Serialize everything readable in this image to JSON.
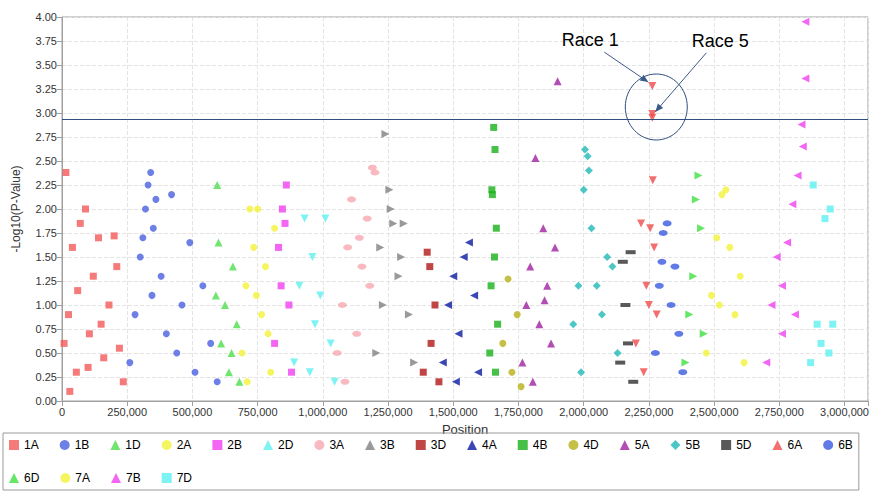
{
  "chart_data": {
    "type": "scatter",
    "x_label": "Position",
    "y_label": "-Log10(P-Value)",
    "xlim": [
      0,
      3090000
    ],
    "xticks": [
      0,
      {
        "value": 250000,
        "label": "250,000"
      },
      {
        "value": 500000,
        "label": "500,000"
      },
      {
        "value": 750000,
        "label": "750,000"
      },
      {
        "value": 1000000,
        "label": "1,000,000"
      },
      {
        "value": 1250000,
        "label": "1,250,000"
      },
      {
        "value": 1500000,
        "label": "1,500,000"
      },
      {
        "value": 1750000,
        "label": "1,750,000"
      },
      {
        "value": 2000000,
        "label": "2,000,000"
      },
      {
        "value": 2250000,
        "label": "2,250,000"
      },
      {
        "value": 2500000,
        "label": "2,500,000"
      },
      {
        "value": 2750000,
        "label": "2,750,000"
      },
      {
        "value": 3000000,
        "label": "3,000,000"
      }
    ],
    "ylim": [
      0,
      4
    ],
    "yticks": [
      {
        "value": 0,
        "label": "0.00"
      },
      0.25,
      {
        "value": 0.5,
        "label": "0.50"
      },
      0.75,
      {
        "value": 1,
        "label": "1.00"
      },
      1.25,
      {
        "value": 1.5,
        "label": "1.50"
      },
      1.75,
      {
        "value": 2,
        "label": "2.00"
      },
      2.25,
      {
        "value": 2.5,
        "label": "2.50"
      },
      2.75,
      {
        "value": 3,
        "label": "3.00"
      },
      3.25,
      {
        "value": 3.5,
        "label": "3.50"
      },
      3.75,
      {
        "value": 4,
        "label": "4.00"
      }
    ],
    "grid": true,
    "legend": "bottom",
    "threshold": 2.93,
    "annotations": [
      {
        "text": "Race 1",
        "x": 2263000,
        "y": 3.28
      },
      {
        "text": "Race 5",
        "x": 2263000,
        "y": 2.97
      }
    ],
    "series": [
      {
        "name": "1A",
        "color": "#f25a5a",
        "marker": "square",
        "x": [
          8000,
          15000,
          25000,
          40000,
          55000,
          70000,
          90000,
          105000,
          120000,
          140000,
          160000,
          180000,
          200000,
          220000,
          235000,
          30000,
          60000,
          100000,
          150000,
          210000
        ],
        "values": [
          0.6,
          2.38,
          0.9,
          1.6,
          0.3,
          1.85,
          2.0,
          0.7,
          1.3,
          1.7,
          0.45,
          1.0,
          1.72,
          0.55,
          0.2,
          0.1,
          1.15,
          0.35,
          0.8,
          1.4
        ]
      },
      {
        "name": "1B",
        "color": "#4a5fe0",
        "marker": "circle",
        "x": [
          260000,
          280000,
          300000,
          320000,
          330000,
          340000,
          350000,
          360000,
          380000,
          400000,
          420000,
          440000,
          460000,
          490000,
          510000,
          540000,
          570000,
          595000,
          310000,
          345000
        ],
        "values": [
          0.4,
          0.9,
          1.5,
          2.0,
          2.25,
          2.38,
          1.8,
          2.1,
          1.3,
          0.7,
          2.15,
          0.5,
          1.0,
          1.65,
          0.3,
          1.2,
          0.6,
          0.2,
          1.7,
          1.1
        ]
      },
      {
        "name": "1D",
        "color": "#4ce04c",
        "marker": "triangle",
        "x": [
          590000,
          595000,
          610000,
          625000,
          640000,
          655000,
          670000,
          680000,
          600000,
          650000
        ],
        "values": [
          1.1,
          2.25,
          0.6,
          1.0,
          0.3,
          1.4,
          0.8,
          0.2,
          1.65,
          0.5
        ]
      },
      {
        "name": "2A",
        "color": "#f2f23a",
        "marker": "circle",
        "x": [
          690000,
          705000,
          720000,
          735000,
          750000,
          765000,
          780000,
          800000,
          815000,
          710000,
          745000,
          790000
        ],
        "values": [
          0.5,
          1.2,
          2.0,
          1.6,
          2.0,
          0.9,
          1.4,
          0.3,
          1.8,
          0.2,
          1.1,
          0.7
        ]
      },
      {
        "name": "2B",
        "color": "#f040f0",
        "marker": "square",
        "x": [
          815000,
          830000,
          845000,
          860000,
          870000,
          880000,
          840000,
          855000
        ],
        "values": [
          0.6,
          1.6,
          2.0,
          2.25,
          1.0,
          0.3,
          1.2,
          1.85
        ]
      },
      {
        "name": "2D",
        "color": "#5cf0f0",
        "marker": "triangle-down",
        "x": [
          890000,
          910000,
          930000,
          950000,
          970000,
          990000,
          1010000,
          1030000,
          1045000,
          960000
        ],
        "values": [
          0.4,
          1.2,
          1.9,
          0.3,
          0.8,
          1.1,
          1.9,
          0.6,
          0.2,
          1.5
        ]
      },
      {
        "name": "3A",
        "color": "#f7a8b0",
        "marker": "ellipse",
        "x": [
          1055000,
          1075000,
          1095000,
          1110000,
          1130000,
          1150000,
          1170000,
          1190000,
          1200000,
          1085000,
          1140000,
          1180000
        ],
        "values": [
          0.5,
          1.0,
          1.6,
          2.1,
          0.7,
          1.4,
          1.9,
          2.43,
          2.38,
          0.2,
          1.7,
          1.2
        ]
      },
      {
        "name": "3B",
        "color": "#808080",
        "marker": "triangle-right",
        "x": [
          1205000,
          1220000,
          1240000,
          1255000,
          1270000,
          1290000,
          1310000,
          1330000,
          1350000,
          1260000,
          1300000,
          1230000
        ],
        "values": [
          0.5,
          1.6,
          2.78,
          2.2,
          1.85,
          1.3,
          1.85,
          0.9,
          0.4,
          2.0,
          1.5,
          1.0
        ]
      },
      {
        "name": "3D",
        "color": "#b01818",
        "marker": "square",
        "x": [
          1385000,
          1400000,
          1415000,
          1430000,
          1445000,
          1410000
        ],
        "values": [
          0.3,
          1.55,
          0.6,
          1.0,
          0.2,
          1.4
        ]
      },
      {
        "name": "4A",
        "color": "#0a1aa0",
        "marker": "triangle-left",
        "x": [
          1460000,
          1480000,
          1500000,
          1520000,
          1540000,
          1560000,
          1580000,
          1595000,
          1510000
        ],
        "values": [
          0.4,
          1.0,
          1.3,
          0.7,
          1.5,
          1.65,
          1.1,
          0.3,
          0.2
        ]
      },
      {
        "name": "4B",
        "color": "#18b018",
        "marker": "square",
        "x": [
          1640000,
          1645000,
          1650000,
          1655000,
          1660000,
          1665000,
          1670000,
          1648000,
          1658000,
          1662000
        ],
        "values": [
          0.5,
          1.2,
          2.15,
          2.85,
          2.62,
          1.8,
          0.8,
          2.2,
          1.5,
          0.3
        ]
      },
      {
        "name": "4D",
        "color": "#b8b018",
        "marker": "circle",
        "x": [
          1690000,
          1710000,
          1725000,
          1745000,
          1760000
        ],
        "values": [
          0.6,
          1.27,
          0.3,
          0.9,
          0.15
        ]
      },
      {
        "name": "5A",
        "color": "#a020a0",
        "marker": "triangle",
        "x": [
          1765000,
          1780000,
          1795000,
          1815000,
          1830000,
          1845000,
          1860000,
          1875000,
          1900000,
          1890000,
          1805000,
          1850000
        ],
        "values": [
          0.4,
          1.0,
          1.4,
          2.53,
          0.8,
          1.8,
          1.2,
          0.6,
          3.33,
          1.6,
          0.2,
          1.05
        ]
      },
      {
        "name": "5B",
        "color": "#20b8b8",
        "marker": "diamond",
        "x": [
          1960000,
          1980000,
          2000000,
          2005000,
          2015000,
          2030000,
          2050000,
          2070000,
          2090000,
          2110000,
          2130000,
          2020000,
          1990000
        ],
        "values": [
          0.8,
          1.2,
          2.2,
          2.62,
          2.55,
          1.8,
          1.2,
          0.9,
          1.5,
          1.4,
          0.5,
          2.4,
          0.3
        ]
      },
      {
        "name": "5D",
        "color": "#303030",
        "marker": "dash",
        "x": [
          2140000,
          2150000,
          2160000,
          2170000,
          2180000,
          2190000
        ],
        "values": [
          0.4,
          1.45,
          1.0,
          0.6,
          1.55,
          0.2
        ]
      },
      {
        "name": "6A",
        "color": "#f04a4a",
        "marker": "triangle-down",
        "x": [
          2200000,
          2220000,
          2240000,
          2255000,
          2263000,
          2263000,
          2263000,
          2265000,
          2270000,
          2280000,
          2230000,
          2250000
        ],
        "values": [
          0.6,
          1.85,
          1.2,
          1.8,
          3.28,
          2.99,
          2.95,
          2.3,
          1.6,
          0.9,
          0.3,
          1.0
        ]
      },
      {
        "name": "6B",
        "color": "#3a5ae0",
        "marker": "ellipse",
        "x": [
          2275000,
          2290000,
          2305000,
          2320000,
          2335000,
          2350000,
          2365000,
          2380000,
          2300000
        ],
        "values": [
          0.5,
          1.2,
          1.75,
          1.85,
          1.0,
          1.4,
          0.7,
          0.3,
          1.45
        ]
      },
      {
        "name": "6D",
        "color": "#40e040",
        "marker": "triangle-right",
        "x": [
          2390000,
          2405000,
          2420000,
          2440000,
          2450000,
          2460000,
          2430000
        ],
        "values": [
          0.4,
          0.9,
          1.3,
          2.35,
          1.8,
          0.7,
          2.1
        ]
      },
      {
        "name": "7A",
        "color": "#f2f23a",
        "marker": "circle",
        "x": [
          2470000,
          2490000,
          2510000,
          2530000,
          2545000,
          2560000,
          2580000,
          2600000,
          2615000,
          2520000
        ],
        "values": [
          0.5,
          1.1,
          1.7,
          2.15,
          2.2,
          1.6,
          0.9,
          1.3,
          0.4,
          1.0
        ]
      },
      {
        "name": "7B",
        "color": "#f040f0",
        "marker": "triangle-left",
        "x": [
          2700000,
          2720000,
          2740000,
          2760000,
          2780000,
          2800000,
          2820000,
          2835000,
          2840000,
          2850000,
          2850000,
          2760000,
          2810000
        ],
        "values": [
          0.4,
          1.0,
          1.5,
          0.7,
          1.65,
          2.05,
          2.35,
          2.88,
          2.65,
          3.36,
          3.95,
          1.2,
          0.9
        ]
      },
      {
        "name": "7D",
        "color": "#5cf0f0",
        "marker": "square",
        "x": [
          2870000,
          2880000,
          2895000,
          2910000,
          2925000,
          2940000,
          2945000,
          2955000
        ],
        "values": [
          0.4,
          2.25,
          0.8,
          0.6,
          1.9,
          0.5,
          2.0,
          0.8
        ]
      }
    ]
  }
}
